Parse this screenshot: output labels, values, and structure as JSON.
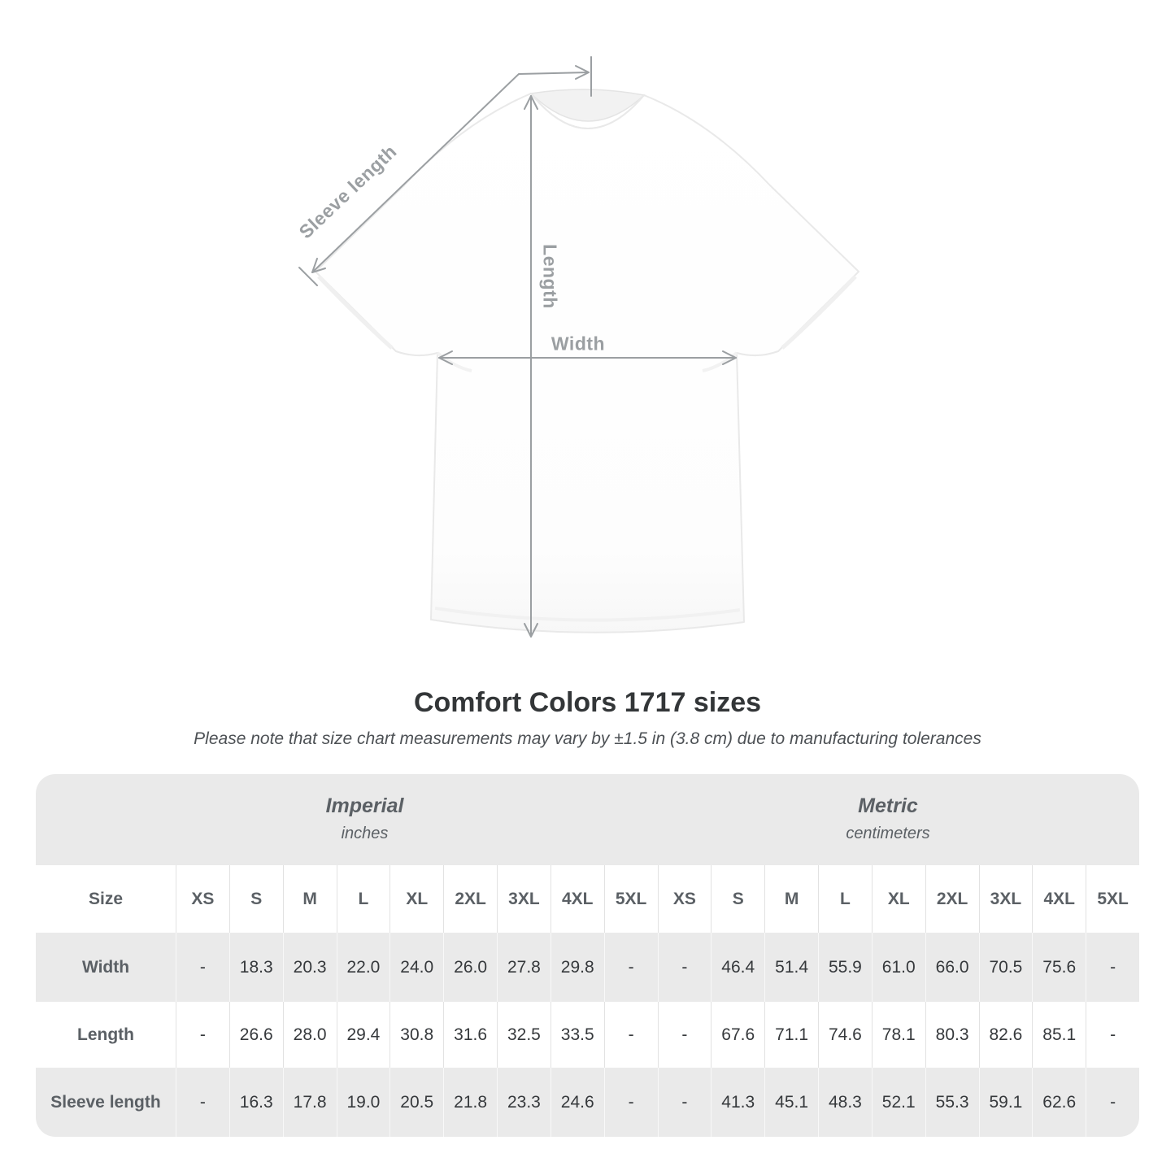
{
  "title": "Comfort Colors 1717 sizes",
  "subtitle": "Please note that size chart measurements may vary by ±1.5 in (3.8 cm) due to manufacturing tolerances",
  "diagram": {
    "sleeve_label": "Sleeve length",
    "length_label": "Length",
    "width_label": "Width",
    "annotation_color": "#9b9fa2"
  },
  "colors": {
    "table_header_bg": "#eaeaea",
    "table_alt_row_bg": "#eaeaea",
    "table_label_text": "#5b6065",
    "table_value_text": "#36393c",
    "title_text": "#333638"
  },
  "chart_data": {
    "type": "table",
    "title": "Comfort Colors 1717 sizes",
    "note": "Please note that size chart measurements may vary by ±1.5 in (3.8 cm) due to manufacturing tolerances",
    "size_header": "Size",
    "column_groups": [
      {
        "label": "Imperial",
        "unit": "inches"
      },
      {
        "label": "Metric",
        "unit": "centimeters"
      }
    ],
    "columns": [
      "XS",
      "S",
      "M",
      "L",
      "XL",
      "2XL",
      "3XL",
      "4XL",
      "5XL"
    ],
    "rows": [
      {
        "label": "Width",
        "imperial": [
          "-",
          "18.3",
          "20.3",
          "22.0",
          "24.0",
          "26.0",
          "27.8",
          "29.8",
          "-"
        ],
        "metric": [
          "-",
          "46.4",
          "51.4",
          "55.9",
          "61.0",
          "66.0",
          "70.5",
          "75.6",
          "-"
        ]
      },
      {
        "label": "Length",
        "imperial": [
          "-",
          "26.6",
          "28.0",
          "29.4",
          "30.8",
          "31.6",
          "32.5",
          "33.5",
          "-"
        ],
        "metric": [
          "-",
          "67.6",
          "71.1",
          "74.6",
          "78.1",
          "80.3",
          "82.6",
          "85.1",
          "-"
        ]
      },
      {
        "label": "Sleeve length",
        "imperial": [
          "-",
          "16.3",
          "17.8",
          "19.0",
          "20.5",
          "21.8",
          "23.3",
          "24.6",
          "-"
        ],
        "metric": [
          "-",
          "41.3",
          "45.1",
          "48.3",
          "52.1",
          "55.3",
          "59.1",
          "62.6",
          "-"
        ]
      }
    ]
  }
}
